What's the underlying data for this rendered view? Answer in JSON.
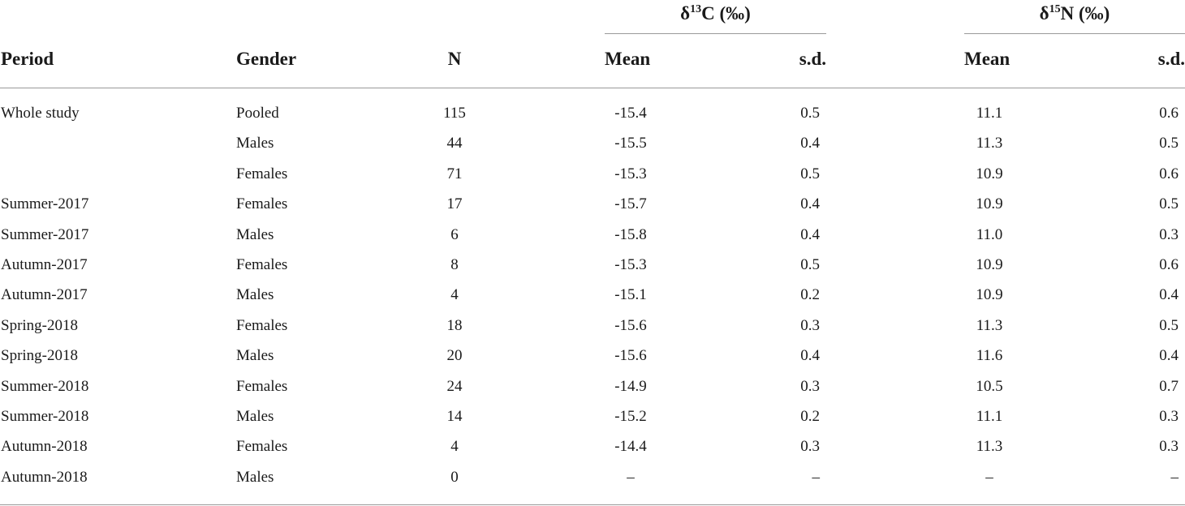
{
  "table": {
    "group_headers": {
      "c13": {
        "delta": "δ",
        "mass": "13",
        "element_unit": "C (‰)"
      },
      "n15": {
        "delta": "δ",
        "mass": "15",
        "element_unit": "N (‰)"
      }
    },
    "columns": {
      "period": "Period",
      "gender": "Gender",
      "n": "N",
      "c_mean": "Mean",
      "c_sd": "s.d.",
      "n_mean": "Mean",
      "n_sd": "s.d."
    },
    "rows": [
      {
        "period": "Whole study",
        "gender": "Pooled",
        "n": "115",
        "c_mean": "-15.4",
        "c_sd": "0.5",
        "n_mean": "11.1",
        "n_sd": "0.6"
      },
      {
        "period": "",
        "gender": "Males",
        "n": "44",
        "c_mean": "-15.5",
        "c_sd": "0.4",
        "n_mean": "11.3",
        "n_sd": "0.5"
      },
      {
        "period": "",
        "gender": "Females",
        "n": "71",
        "c_mean": "-15.3",
        "c_sd": "0.5",
        "n_mean": "10.9",
        "n_sd": "0.6"
      },
      {
        "period": "Summer-2017",
        "gender": "Females",
        "n": "17",
        "c_mean": "-15.7",
        "c_sd": "0.4",
        "n_mean": "10.9",
        "n_sd": "0.5"
      },
      {
        "period": "Summer-2017",
        "gender": "Males",
        "n": "6",
        "c_mean": "-15.8",
        "c_sd": "0.4",
        "n_mean": "11.0",
        "n_sd": "0.3"
      },
      {
        "period": "Autumn-2017",
        "gender": "Females",
        "n": "8",
        "c_mean": "-15.3",
        "c_sd": "0.5",
        "n_mean": "10.9",
        "n_sd": "0.6"
      },
      {
        "period": "Autumn-2017",
        "gender": "Males",
        "n": "4",
        "c_mean": "-15.1",
        "c_sd": "0.2",
        "n_mean": "10.9",
        "n_sd": "0.4"
      },
      {
        "period": "Spring-2018",
        "gender": "Females",
        "n": "18",
        "c_mean": "-15.6",
        "c_sd": "0.3",
        "n_mean": "11.3",
        "n_sd": "0.5"
      },
      {
        "period": "Spring-2018",
        "gender": "Males",
        "n": "20",
        "c_mean": "-15.6",
        "c_sd": "0.4",
        "n_mean": "11.6",
        "n_sd": "0.4"
      },
      {
        "period": "Summer-2018",
        "gender": "Females",
        "n": "24",
        "c_mean": "-14.9",
        "c_sd": "0.3",
        "n_mean": "10.5",
        "n_sd": "0.7"
      },
      {
        "period": "Summer-2018",
        "gender": "Males",
        "n": "14",
        "c_mean": "-15.2",
        "c_sd": "0.2",
        "n_mean": "11.1",
        "n_sd": "0.3"
      },
      {
        "period": "Autumn-2018",
        "gender": "Females",
        "n": "4",
        "c_mean": "-14.4",
        "c_sd": "0.3",
        "n_mean": "11.3",
        "n_sd": "0.3"
      },
      {
        "period": "Autumn-2018",
        "gender": "Males",
        "n": "0",
        "c_mean": "–",
        "c_sd": "–",
        "n_mean": "–",
        "n_sd": "–"
      }
    ]
  }
}
